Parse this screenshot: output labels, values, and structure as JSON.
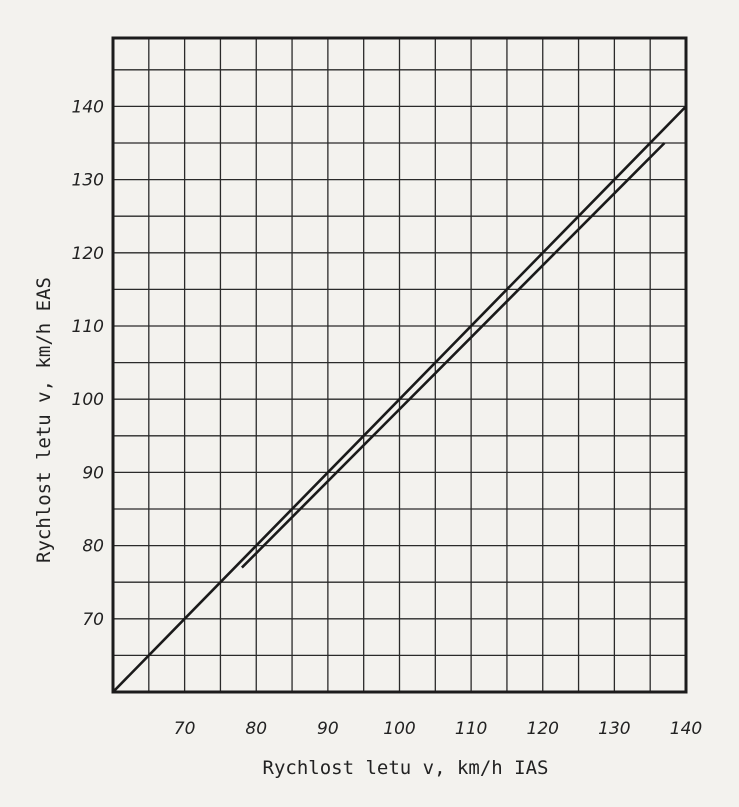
{
  "chart_data": {
    "type": "line",
    "title": "",
    "xlabel": "Rychlost letu v, km/h IAS",
    "ylabel": "Rychlost letu v, km/h EAS",
    "xlim": [
      60,
      140
    ],
    "ylim": [
      60,
      140
    ],
    "xticks": [
      "70",
      "80",
      "90",
      "100",
      "110",
      "120",
      "130",
      "140"
    ],
    "yticks": [
      "70",
      "80",
      "90",
      "100",
      "110",
      "120",
      "130",
      "140"
    ],
    "grid": true,
    "legend": "none",
    "series": [
      {
        "x": [
          60,
          140
        ],
        "y": [
          60,
          140
        ]
      },
      {
        "x": [
          78,
          137
        ],
        "y": [
          77,
          135
        ]
      }
    ]
  }
}
